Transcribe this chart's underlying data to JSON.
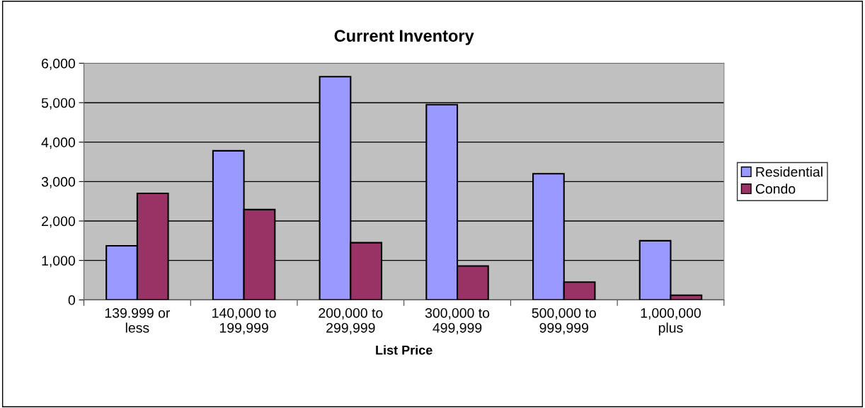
{
  "chart_data": {
    "type": "bar",
    "title": "Current Inventory",
    "xlabel": "List Price",
    "categories": [
      "139.999 or\nless",
      "140,000 to\n199,999",
      "200,000 to\n299,999",
      "300,000 to\n499,999",
      "500,000 to\n999,999",
      "1,000,000\nplus"
    ],
    "series": [
      {
        "name": "Residential",
        "color": "#9999ff",
        "values": [
          1370,
          3780,
          5660,
          4950,
          3200,
          1500
        ]
      },
      {
        "name": "Condo",
        "color": "#993366",
        "values": [
          2700,
          2290,
          1450,
          860,
          450,
          120
        ]
      }
    ],
    "ylim": [
      0,
      6000
    ],
    "yticks": [
      {
        "value": 0,
        "label": "0"
      },
      {
        "value": 1000,
        "label": "1,000"
      },
      {
        "value": 2000,
        "label": "2,000"
      },
      {
        "value": 3000,
        "label": "3,000"
      },
      {
        "value": 4000,
        "label": "4,000"
      },
      {
        "value": 5000,
        "label": "5,000"
      },
      {
        "value": 6000,
        "label": "6,000"
      }
    ],
    "grid": "y",
    "legend": "right"
  }
}
